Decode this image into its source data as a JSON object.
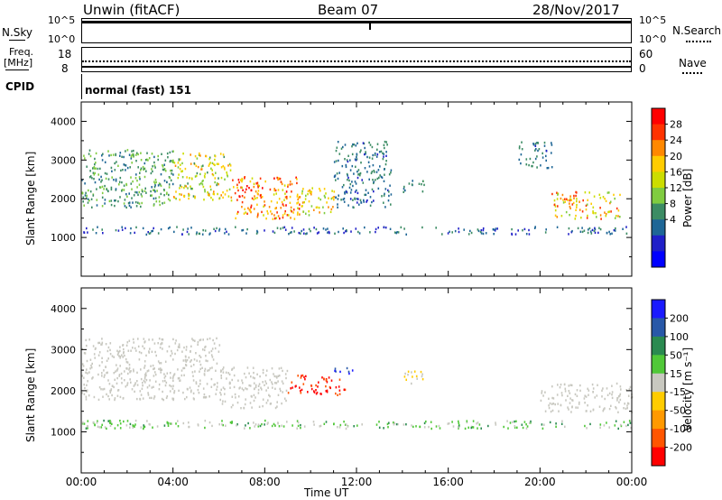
{
  "header": {
    "title": "Unwin (fitACF)",
    "beam": "Beam 07",
    "date": "28/Nov/2017"
  },
  "strip1": {
    "label": "N.Sky",
    "left_ticks": [
      "10^5",
      "10^0"
    ],
    "right_ticks": [
      "10^5",
      "10^0"
    ],
    "right_label": "N.Search"
  },
  "strip2": {
    "label_line1": "Freq.",
    "label_line2": "[MHz]",
    "left_ticks": [
      "18",
      "8"
    ],
    "right_ticks": [
      "60",
      "0"
    ],
    "right_label": "Nave"
  },
  "cpid": {
    "label": "CPID",
    "value": "normal (fast) 151"
  },
  "axes": {
    "ylabel": "Slant Range [km]",
    "xlabel": "Time UT",
    "y_ticks": [
      1000,
      2000,
      3000,
      4000
    ],
    "x_ticks": [
      "00:00",
      "04:00",
      "08:00",
      "12:00",
      "16:00",
      "20:00",
      "00:00"
    ]
  },
  "colorbars": {
    "power": {
      "label": "Power [dB]",
      "ticks": [
        "28",
        "24",
        "20",
        "16",
        "12",
        "8",
        "4"
      ],
      "colors": [
        "#ff0000",
        "#ff3300",
        "#ff8800",
        "#ffcc00",
        "#ccdd00",
        "#80cc40",
        "#3c8c64",
        "#1e6696",
        "#2020c8",
        "#0000ff"
      ]
    },
    "velocity": {
      "label": "Velocity [m s⁻¹]",
      "ticks": [
        "200",
        "100",
        "50",
        "15",
        "-15",
        "-50",
        "-100",
        "-200"
      ],
      "colors": [
        "#1a1aff",
        "#2858a8",
        "#2a8a50",
        "#50c838",
        "#c8c8c0",
        "#ffcc00",
        "#ff9900",
        "#ff5500",
        "#ff0000"
      ]
    }
  },
  "chart_data": [
    {
      "type": "heatmap",
      "name": "power",
      "x_range_hours": [
        0,
        24
      ],
      "ylim": [
        0,
        4500
      ],
      "regions": [
        {
          "t0": 0.0,
          "t1": 4.0,
          "r0": 1800,
          "r1": 3300,
          "v0": 8,
          "v1": 16
        },
        {
          "t0": 4.0,
          "t1": 6.5,
          "r0": 2000,
          "r1": 3200,
          "v0": 12,
          "v1": 24
        },
        {
          "t0": 6.5,
          "t1": 9.5,
          "r0": 1500,
          "r1": 2600,
          "v0": 18,
          "v1": 30
        },
        {
          "t0": 9.5,
          "t1": 11.0,
          "r0": 1600,
          "r1": 2300,
          "v0": 14,
          "v1": 24
        },
        {
          "t0": 11.0,
          "t1": 13.5,
          "r0": 1800,
          "r1": 3500,
          "v0": 6,
          "v1": 12
        },
        {
          "t0": 14.0,
          "t1": 15.0,
          "r0": 2200,
          "r1": 2500,
          "v0": 8,
          "v1": 16
        },
        {
          "t0": 19.0,
          "t1": 20.5,
          "r0": 2800,
          "r1": 3500,
          "v0": 6,
          "v1": 12
        },
        {
          "t0": 20.5,
          "t1": 23.5,
          "r0": 1500,
          "r1": 2200,
          "v0": 14,
          "v1": 28
        },
        {
          "t0": 0.0,
          "t1": 24.0,
          "r0": 1100,
          "r1": 1300,
          "v0": 4,
          "v1": 12
        }
      ]
    },
    {
      "type": "heatmap",
      "name": "velocity",
      "x_range_hours": [
        0,
        24
      ],
      "ylim": [
        0,
        4500
      ],
      "regions": [
        {
          "t0": 0.0,
          "t1": 6.0,
          "r0": 1800,
          "r1": 3300,
          "v0": -15,
          "v1": 15
        },
        {
          "t0": 6.0,
          "t1": 9.0,
          "r0": 1600,
          "r1": 2600,
          "v0": -15,
          "v1": 15
        },
        {
          "t0": 9.0,
          "t1": 11.5,
          "r0": 1900,
          "r1": 2400,
          "v0": -250,
          "v1": -150
        },
        {
          "t0": 11.0,
          "t1": 12.0,
          "r0": 2400,
          "r1": 2600,
          "v0": 150,
          "v1": 250
        },
        {
          "t0": 14.0,
          "t1": 15.0,
          "r0": 2200,
          "r1": 2500,
          "v0": -60,
          "v1": 15
        },
        {
          "t0": 20.0,
          "t1": 24.0,
          "r0": 1500,
          "r1": 2200,
          "v0": -15,
          "v1": 15
        },
        {
          "t0": 0.0,
          "t1": 24.0,
          "r0": 1100,
          "r1": 1300,
          "v0": -15,
          "v1": 100
        },
        {
          "t0": 1.0,
          "t1": 2.0,
          "r0": 1200,
          "r1": 1300,
          "v0": 15,
          "v1": 50
        }
      ]
    }
  ]
}
